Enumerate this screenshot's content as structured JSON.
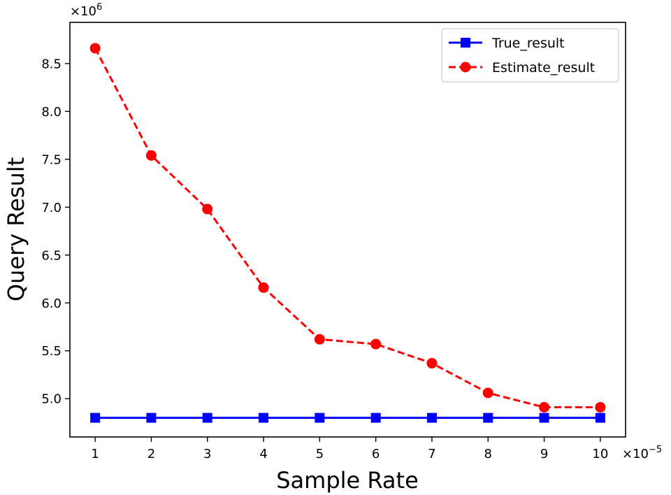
{
  "chart_data": {
    "type": "line",
    "xlabel": "Sample Rate",
    "ylabel": "Query Result",
    "x": [
      1,
      2,
      3,
      4,
      5,
      6,
      7,
      8,
      9,
      10
    ],
    "x_ticks": [
      "1",
      "2",
      "3",
      "4",
      "5",
      "6",
      "7",
      "8",
      "9",
      "10"
    ],
    "x_multiplier": {
      "base": "×10",
      "exp": "−5"
    },
    "y_multiplier": {
      "base": "×10",
      "exp": "6"
    },
    "y_ticks": [
      "5.0",
      "5.5",
      "6.0",
      "6.5",
      "7.0",
      "7.5",
      "8.0",
      "8.5"
    ],
    "y_tick_values": [
      5.0,
      5.5,
      6.0,
      6.5,
      7.0,
      7.5,
      8.0,
      8.5
    ],
    "xlim": [
      0.55,
      10.45
    ],
    "ylim": [
      4.6,
      8.93
    ],
    "series": [
      {
        "name": "True_result",
        "values": [
          4.8,
          4.8,
          4.8,
          4.8,
          4.8,
          4.8,
          4.8,
          4.8,
          4.8,
          4.8
        ],
        "color": "#0000ff",
        "style": "solid",
        "marker": "square"
      },
      {
        "name": "Estimate_result",
        "values": [
          8.66,
          7.54,
          6.98,
          6.16,
          5.62,
          5.57,
          5.37,
          5.06,
          4.91,
          4.91
        ],
        "color": "#ff0000",
        "style": "dashed",
        "marker": "circle"
      }
    ],
    "legend_position": "top-right",
    "grid": false
  }
}
